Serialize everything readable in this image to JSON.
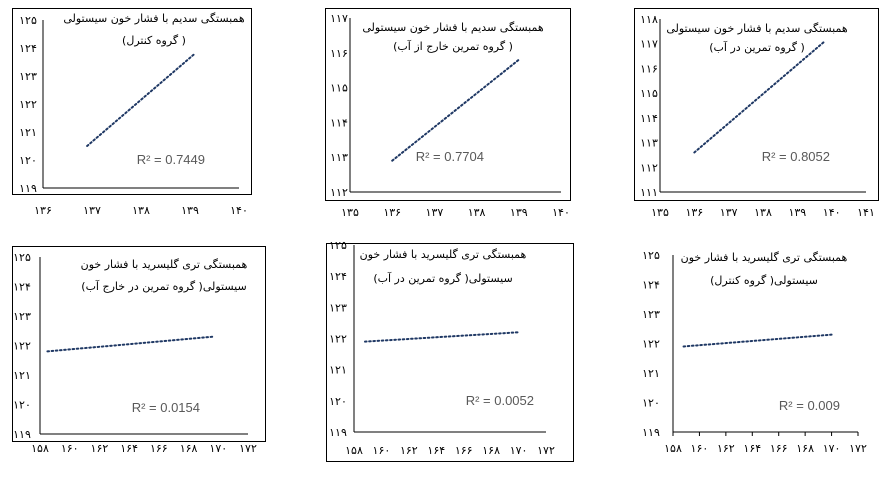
{
  "chart_data": [
    {
      "type": "scatter",
      "title_lines": [
        "همبستگی سدیم با فشار خون سیستولی",
        "( گروه کنترل)"
      ],
      "r2_label": "R² = 0.7449",
      "xlim": [
        136,
        140
      ],
      "ylim": [
        119,
        125
      ],
      "x_ticks": [
        "۱۳۶",
        "۱۳۷",
        "۱۳۸",
        "۱۳۹",
        "۱۴۰"
      ],
      "y_ticks": [
        "۱۱۹",
        "۱۲۰",
        "۱۲۱",
        "۱۲۲",
        "۱۲۳",
        "۱۲۴",
        "۱۲۵"
      ],
      "trendline": {
        "x": [
          136.9,
          139.1
        ],
        "y": [
          120.5,
          123.8
        ]
      }
    },
    {
      "type": "scatter",
      "title_lines": [
        "همبستگی سدیم با فشار خون سیستولی",
        "( گروه تمرین خارج از آب)"
      ],
      "r2_label": "R² = 0.7704",
      "xlim": [
        135,
        140
      ],
      "ylim": [
        112,
        117
      ],
      "x_ticks": [
        "۱۳۵",
        "۱۳۶",
        "۱۳۷",
        "۱۳۸",
        "۱۳۹",
        "۱۴۰"
      ],
      "y_ticks": [
        "۱۱۲",
        "۱۱۳",
        "۱۱۴",
        "۱۱۵",
        "۱۱۶",
        "۱۱۷"
      ],
      "trendline": {
        "x": [
          136.0,
          139.0
        ],
        "y": [
          112.9,
          115.8
        ]
      }
    },
    {
      "type": "scatter",
      "title_lines": [
        "همبستگی سدیم با فشار خون سیستولی",
        "( گروه تمرین در آب)"
      ],
      "r2_label": "R² = 0.8052",
      "xlim": [
        135,
        141
      ],
      "ylim": [
        111,
        118
      ],
      "x_ticks": [
        "۱۳۵",
        "۱۳۶",
        "۱۳۷",
        "۱۳۸",
        "۱۳۹",
        "۱۴۰",
        "۱۴۱"
      ],
      "y_ticks": [
        "۱۱۱",
        "۱۱۲",
        "۱۱۳",
        "۱۱۴",
        "۱۱۵",
        "۱۱۶",
        "۱۱۷",
        "۱۱۸"
      ],
      "trendline": {
        "x": [
          136.0,
          139.8
        ],
        "y": [
          112.6,
          117.1
        ]
      }
    },
    {
      "type": "scatter",
      "title_lines": [
        "همبستگی تری گلیسرید با فشار خون",
        "سیستولی( گروه تمرین در خارج آب)"
      ],
      "r2_label": "R² = 0.0154",
      "xlim": [
        158,
        172
      ],
      "ylim": [
        119,
        125
      ],
      "x_ticks": [
        "۱۵۸",
        "۱۶۰",
        "۱۶۲",
        "۱۶۴",
        "۱۶۶",
        "۱۶۸",
        "۱۷۰",
        "۱۷۲"
      ],
      "y_ticks": [
        "۱۱۹",
        "۱۲۰",
        "۱۲۱",
        "۱۲۲",
        "۱۲۳",
        "۱۲۴",
        "۱۲۵"
      ],
      "trendline": {
        "x": [
          158.5,
          169.7
        ],
        "y": [
          121.8,
          122.3
        ]
      }
    },
    {
      "type": "scatter",
      "title_lines": [
        "همبستگی تری گلیسرید با فشار خون",
        "سیستولی( گروه تمرین در آب)"
      ],
      "r2_label": "R² = 0.0052",
      "xlim": [
        158,
        172
      ],
      "ylim": [
        119,
        125
      ],
      "x_ticks": [
        "۱۵۸",
        "۱۶۰",
        "۱۶۲",
        "۱۶۴",
        "۱۶۶",
        "۱۶۸",
        "۱۷۰",
        "۱۷۲"
      ],
      "y_ticks": [
        "۱۱۹",
        "۱۲۰",
        "۱۲۱",
        "۱۲۲",
        "۱۲۳",
        "۱۲۴",
        "۱۲۵"
      ],
      "trendline": {
        "x": [
          158.8,
          170.0
        ],
        "y": [
          121.9,
          122.2
        ]
      }
    },
    {
      "type": "scatter",
      "title_lines": [
        "همبستگی تری گلیسرید با فشار خون",
        "سیستولی( گروه کنترل)"
      ],
      "r2_label": "R² = 0.009",
      "xlim": [
        158,
        172
      ],
      "ylim": [
        119,
        125
      ],
      "x_ticks": [
        "۱۵۸",
        "۱۶۰",
        "۱۶۲",
        "۱۶۴",
        "۱۶۶",
        "۱۶۸",
        "۱۷۰",
        "۱۷۲"
      ],
      "y_ticks": [
        "۱۱۹",
        "۱۲۰",
        "۱۲۱",
        "۱۲۲",
        "۱۲۳",
        "۱۲۴",
        "۱۲۵"
      ],
      "trendline": {
        "x": [
          158.8,
          170.0
        ],
        "y": [
          121.9,
          122.3
        ]
      }
    }
  ],
  "colors": {
    "trendline": "#1f3864",
    "axis": "#000000",
    "text": "#000000",
    "r2": "#595959"
  }
}
